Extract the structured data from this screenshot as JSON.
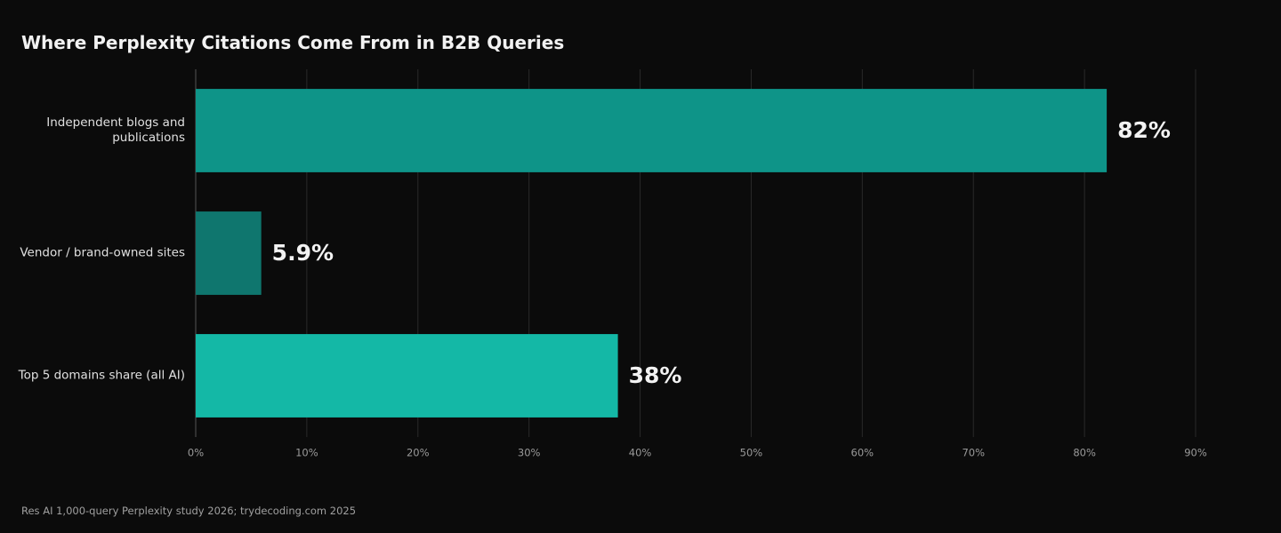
{
  "chart_data": {
    "type": "bar",
    "orientation": "horizontal",
    "title": "Where Perplexity Citations Come From in B2B Queries",
    "source": "Res AI 1,000-query Perplexity study 2026; trydecoding.com 2025",
    "categories": [
      "Independent blogs and publications",
      "Vendor / brand-owned sites",
      "Top 5 domains share (all AI)"
    ],
    "values": [
      82,
      5.9,
      38
    ],
    "value_labels": [
      "82%",
      "5.9%",
      "38%"
    ],
    "colors": [
      "#0e9488",
      "#0f766e",
      "#14b8a6"
    ],
    "xlim": [
      0,
      90
    ],
    "xticks": [
      {
        "value": 0,
        "label": "0%"
      },
      {
        "value": 10,
        "label": "10%"
      },
      {
        "value": 20,
        "label": "20%"
      },
      {
        "value": 30,
        "label": "30%"
      },
      {
        "value": 40,
        "label": "40%"
      },
      {
        "value": 50,
        "label": "50%"
      },
      {
        "value": 60,
        "label": "60%"
      },
      {
        "value": 70,
        "label": "70%"
      },
      {
        "value": 80,
        "label": "80%"
      },
      {
        "value": 90,
        "label": "90%"
      }
    ],
    "grid": true
  }
}
